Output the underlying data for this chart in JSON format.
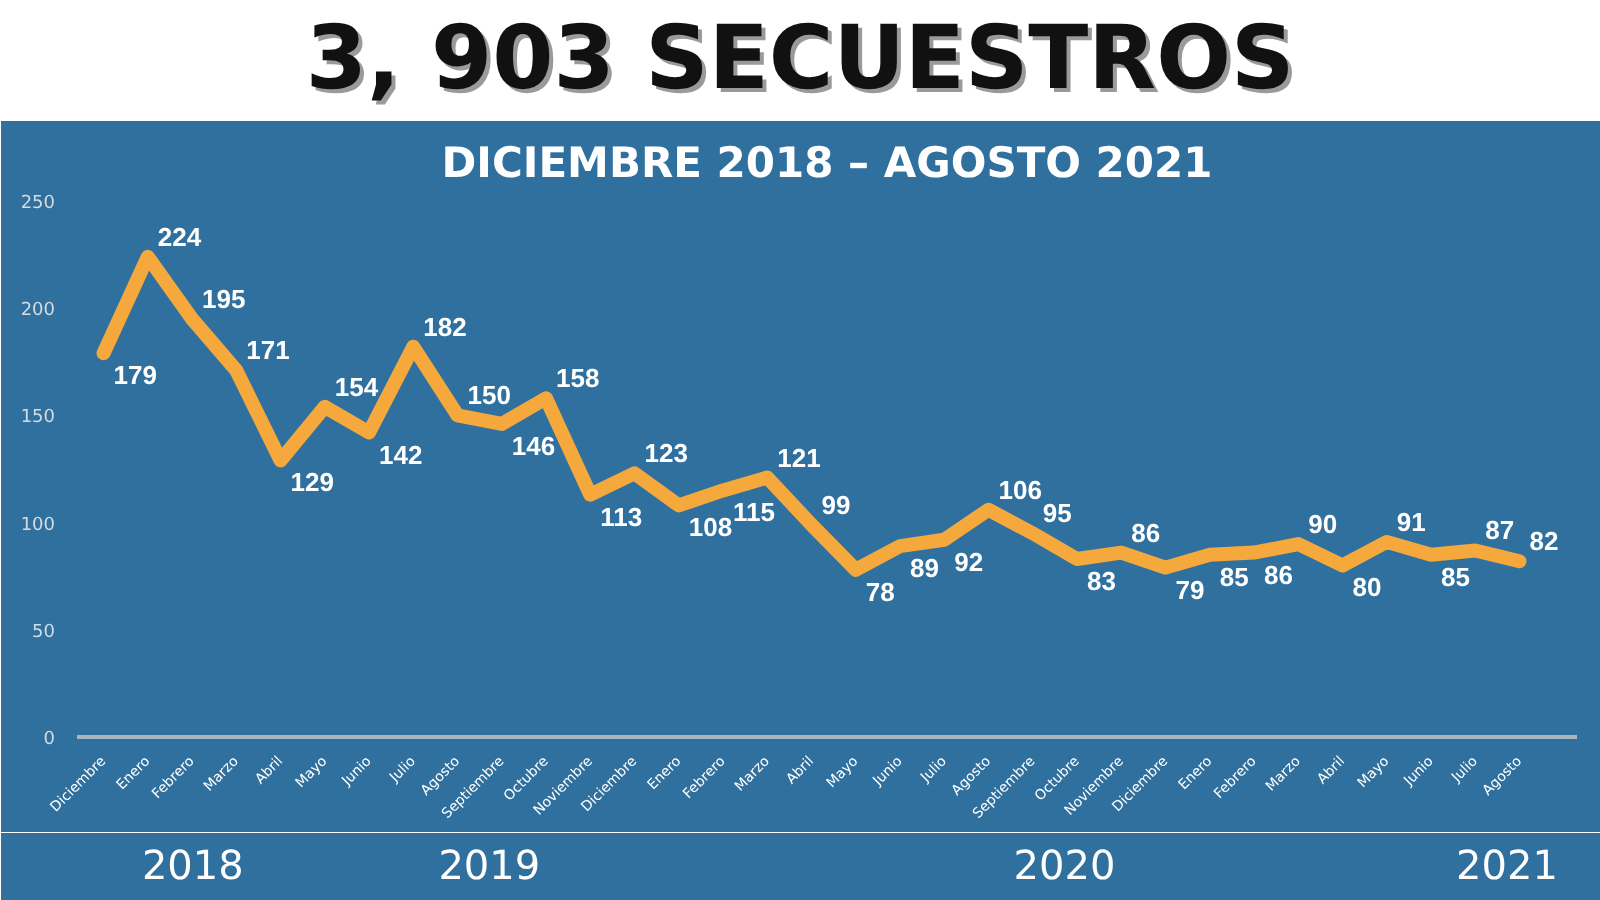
{
  "chart_data": {
    "type": "line",
    "title": "3, 903 SECUESTROS",
    "subtitle": "DICIEMBRE 2018 – AGOSTO 2021",
    "categories": [
      "Diciembre",
      "Enero",
      "Febrero",
      "Marzo",
      "Abril",
      "Mayo",
      "Junio",
      "Julio",
      "Agosto",
      "Septiembre",
      "Octubre",
      "Noviembre",
      "Diciembre",
      "Enero",
      "Febrero",
      "Marzo",
      "Abril",
      "Mayo",
      "Junio",
      "Julio",
      "Agosto",
      "Septiembre",
      "Octubre",
      "Noviembre",
      "Diciembre",
      "Enero",
      "Febrero",
      "Marzo",
      "Abril",
      "Mayo",
      "Junio",
      "Julio",
      "Agosto"
    ],
    "series": [
      {
        "color": "#f5a83c",
        "values": [
          179,
          224,
          195,
          171,
          129,
          154,
          142,
          182,
          150,
          146,
          158,
          113,
          123,
          108,
          115,
          121,
          99,
          78,
          89,
          92,
          106,
          95,
          83,
          86,
          79,
          85,
          86,
          90,
          80,
          91,
          85,
          87,
          82
        ]
      }
    ],
    "ylim": [
      0,
      250
    ],
    "yticks": [
      0,
      50,
      100,
      150,
      200,
      250
    ],
    "data_labels": true,
    "grid": false,
    "marker": "none",
    "line_style": "solid",
    "annotations": [
      "2018",
      "2019",
      "2020",
      "2021"
    ]
  }
}
